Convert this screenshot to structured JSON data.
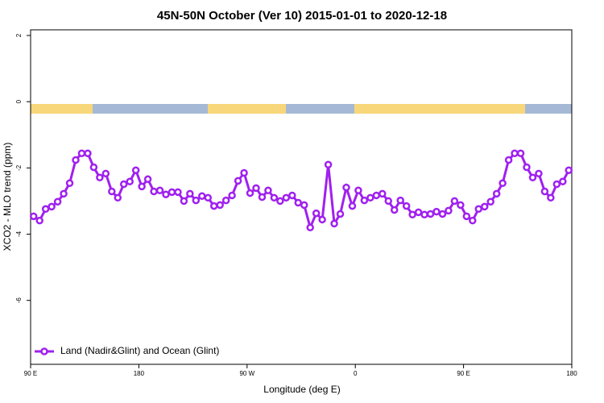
{
  "chart_data": {
    "type": "line",
    "title": "45N-50N October (Ver 10)   2015-01-01 to 2020-12-18",
    "x_label": "Longitude (deg E)",
    "y_label": "XCO2 - MLO trend (ppm)",
    "x": [
      92.5,
      97.5,
      102.5,
      107.5,
      112.5,
      117.5,
      122.5,
      127.5,
      132.5,
      137.5,
      142.5,
      147.5,
      152.5,
      157.5,
      162.5,
      167.5,
      172.5,
      177.5,
      182.5,
      187.5,
      192.5,
      197.5,
      202.5,
      207.5,
      212.5,
      217.5,
      222.5,
      227.5,
      232.5,
      237.5,
      242.5,
      247.5,
      252.5,
      257.5,
      262.5,
      267.5,
      272.5,
      277.5,
      282.5,
      287.5,
      292.5,
      297.5,
      302.5,
      307.5,
      312.5,
      317.5,
      322.5,
      327.5,
      332.5,
      337.5,
      342.5,
      347.5,
      352.5,
      357.5,
      362.5,
      367.5,
      372.5,
      377.5,
      382.5,
      387.5,
      392.5,
      397.5,
      402.5,
      407.5,
      412.5,
      417.5,
      422.5,
      427.5,
      432.5,
      437.5,
      442.5,
      447.5,
      452.5,
      457.5,
      462.5,
      467.5,
      472.5,
      477.5,
      482.5,
      487.5,
      492.5,
      497.5,
      502.5,
      507.5,
      512.5,
      517.5,
      522.5,
      527.5,
      532.5,
      537.5
    ],
    "series": [
      {
        "name": "Land (Nadir&Glint) and Ocean (Glint)",
        "color": "#a020f0",
        "values": [
          -3.46,
          -3.59,
          -3.24,
          -3.17,
          -3.02,
          -2.78,
          -2.46,
          -1.76,
          -1.56,
          -1.56,
          -1.98,
          -2.29,
          -2.17,
          -2.71,
          -2.9,
          -2.49,
          -2.41,
          -2.07,
          -2.56,
          -2.34,
          -2.71,
          -2.68,
          -2.8,
          -2.73,
          -2.73,
          -3.0,
          -2.78,
          -2.98,
          -2.85,
          -2.9,
          -3.15,
          -3.12,
          -2.98,
          -2.83,
          -2.39,
          -2.15,
          -2.76,
          -2.61,
          -2.88,
          -2.68,
          -2.9,
          -3.0,
          -2.9,
          -2.83,
          -3.05,
          -3.12,
          -3.8,
          -3.37,
          -3.56,
          -1.9,
          -3.68,
          -3.39,
          -2.59,
          -3.15,
          -2.68,
          -2.98,
          -2.9,
          -2.83,
          -2.78,
          -3.0,
          -3.27,
          -2.98,
          -3.15,
          -3.41,
          -3.34,
          -3.41,
          -3.39,
          -3.32,
          -3.39,
          -3.29,
          -3.0,
          -3.12,
          -3.46,
          -3.59,
          -3.24,
          -3.17,
          -3.02,
          -2.78,
          -2.46,
          -1.76,
          -1.56,
          -1.56,
          -1.98,
          -2.29,
          -2.17,
          -2.71,
          -2.9,
          -2.49,
          -2.41,
          -2.07
        ]
      }
    ],
    "xlim": [
      90,
      540
    ],
    "xticks": [
      {
        "value": 90,
        "label": "90 E"
      },
      {
        "value": 180,
        "label": "180"
      },
      {
        "value": 270,
        "label": "90 W"
      },
      {
        "value": 360,
        "label": "0"
      },
      {
        "value": 450,
        "label": "90 E"
      },
      {
        "value": 540,
        "label": "180"
      }
    ],
    "ylim": [
      -7.93,
      2.17
    ],
    "yticks": [
      -6,
      -4,
      -2,
      0,
      2
    ],
    "legend": "bottom-left"
  }
}
